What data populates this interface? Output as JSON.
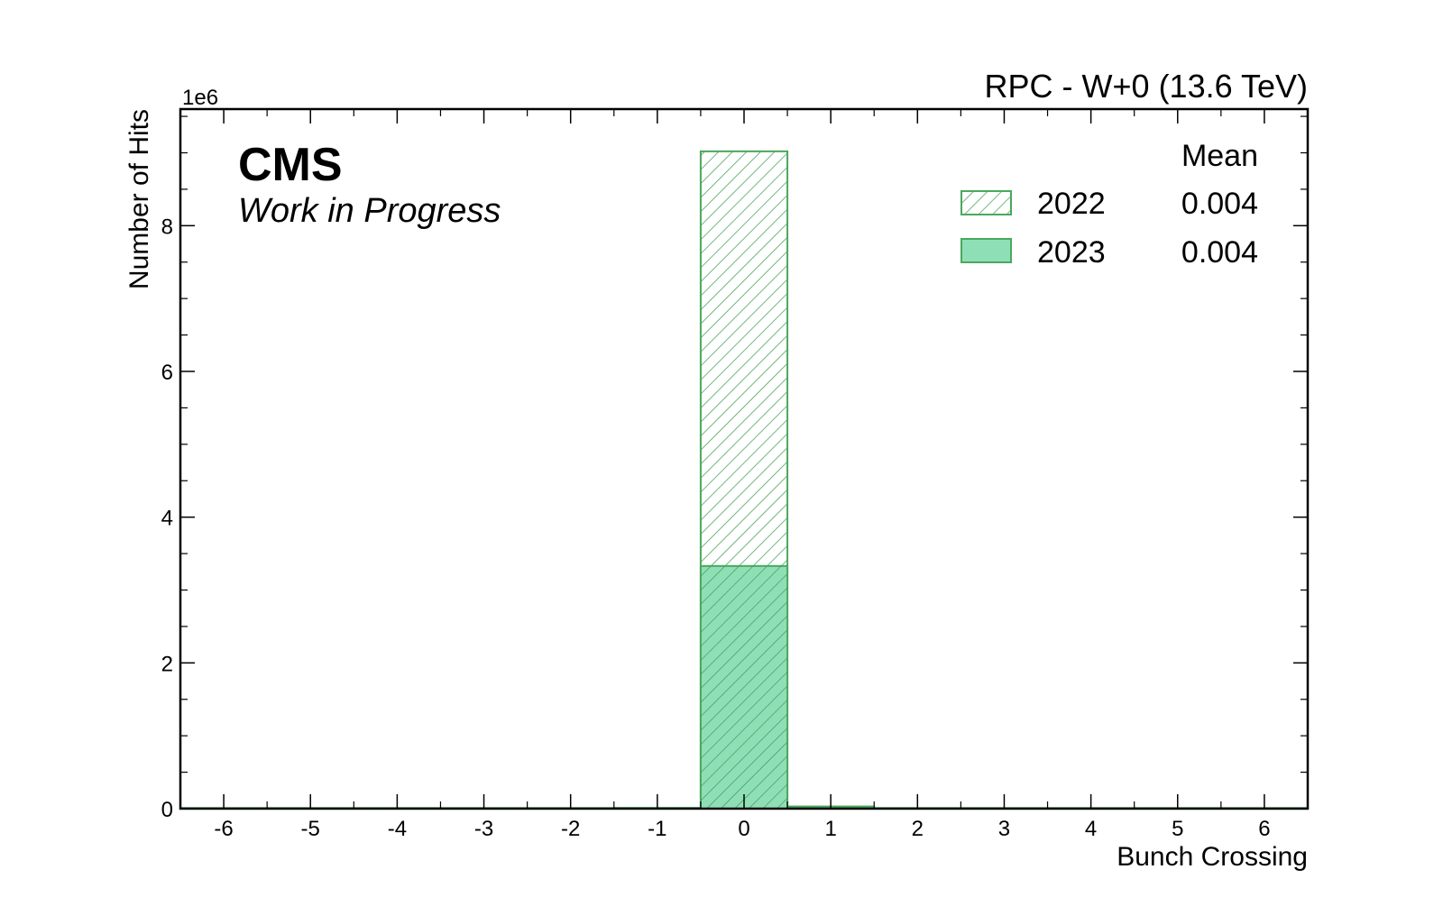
{
  "chart_data": {
    "type": "bar",
    "title": "RPC - W+0 (13.6 TeV)",
    "experiment": "CMS",
    "status": "Work in Progress",
    "xlabel": "Bunch Crossing",
    "ylabel": "Number of Hits",
    "y_exponent_label": "1e6",
    "xlim": [
      -6.5,
      6.5
    ],
    "ylim": [
      0,
      9.6
    ],
    "y_scale_factor": 1000000,
    "x_ticks": [
      -6,
      -5,
      -4,
      -3,
      -2,
      -1,
      0,
      1,
      2,
      3,
      4,
      5,
      6
    ],
    "x_tick_labels": [
      "-6",
      "-5",
      "-4",
      "-3",
      "-2",
      "-1",
      "0",
      "1",
      "2",
      "3",
      "4",
      "5",
      "6"
    ],
    "y_ticks": [
      0,
      2,
      4,
      6,
      8
    ],
    "y_tick_labels": [
      "0",
      "2",
      "4",
      "6",
      "8"
    ],
    "categories": [
      -6,
      -5,
      -4,
      -3,
      -2,
      -1,
      0,
      1,
      2,
      3,
      4,
      5,
      6
    ],
    "series": [
      {
        "name": "2022",
        "style": "hatched",
        "values": [
          0,
          0,
          0.005,
          0.005,
          0.005,
          0.01,
          9.02,
          0.03,
          0.005,
          0.005,
          0.005,
          0.005,
          0
        ],
        "mean": "0.004"
      },
      {
        "name": "2023",
        "style": "filled",
        "values": [
          0,
          0,
          0.002,
          0.002,
          0.002,
          0.005,
          3.33,
          0.015,
          0.002,
          0.002,
          0.002,
          0.002,
          0
        ],
        "mean": "0.004"
      }
    ],
    "legend": {
      "header": "Mean",
      "placement": "top-right"
    },
    "grid": false,
    "colors": {
      "edge": "#4aa85e",
      "fill": "#8fdfb6",
      "hatch": "#4aa85e",
      "frame": "#000000"
    }
  }
}
